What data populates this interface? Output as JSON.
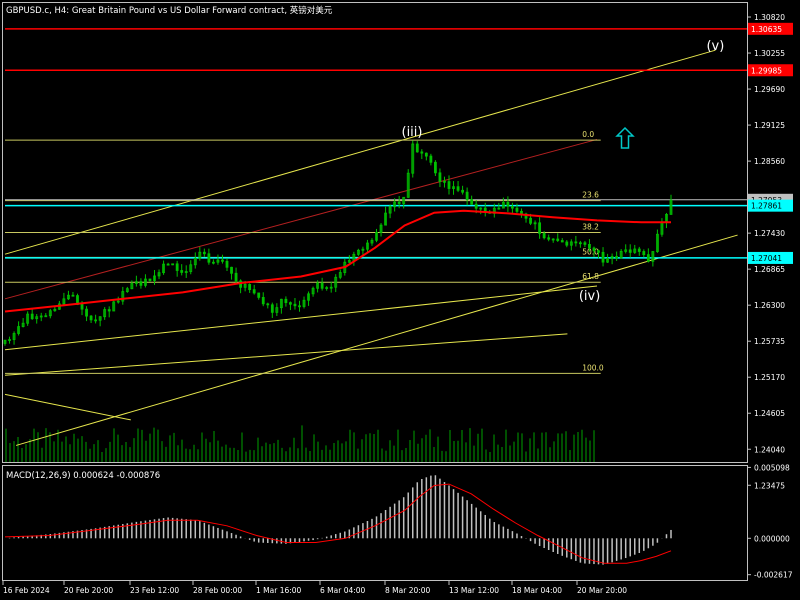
{
  "header": {
    "title": "GBPUSD.c, H4:  Great Britain Pound vs US Dollar Forward contract, 英镑对美元"
  },
  "colors": {
    "background": "#000000",
    "candle": "#00c000",
    "frame": "#c0c0c0",
    "ma": "#ff0000",
    "channel_yellow": "#e6e64d",
    "channel_red": "#b42020",
    "fib": "#c8c860",
    "level_red": "#ff0000",
    "level_cyan": "#00ffff",
    "volume": "#00a000",
    "macd_hist": "#c0c0c0",
    "macd_signal": "#ff0000",
    "arrow": "#00c8c8"
  },
  "chart_data": [
    {
      "type": "candlestick",
      "title": "GBPUSD.c, H4:  Great Britain Pound vs US Dollar Forward contract, 英镑对美元",
      "ylim": [
        1.2384,
        1.3104
      ],
      "y_ticks": [
        "1.30820",
        "1.30255",
        "1.29690",
        "1.29125",
        "1.28560",
        "1.27995",
        "1.27430",
        "1.26865",
        "1.26300",
        "1.25735",
        "1.25170",
        "1.24605",
        "1.24040",
        "1.23475"
      ],
      "x_ticks": [
        "16 Feb 2024",
        "20 Feb 20:00",
        "23 Feb 12:00",
        "28 Feb 00:00",
        "1 Mar 16:00",
        "6 Mar 04:00",
        "8 Mar 20:00",
        "13 Mar 12:00",
        "18 Mar 04:00",
        "20 Mar 20:00"
      ],
      "price_path": [
        [
          0,
          1.257
        ],
        [
          3,
          1.261
        ],
        [
          6,
          1.262
        ],
        [
          9,
          1.265
        ],
        [
          12,
          1.26
        ],
        [
          14,
          1.2625
        ],
        [
          17,
          1.266
        ],
        [
          20,
          1.267
        ],
        [
          22,
          1.27
        ],
        [
          24,
          1.268
        ],
        [
          26,
          1.271
        ],
        [
          28,
          1.27
        ],
        [
          30,
          1.269
        ],
        [
          32,
          1.266
        ],
        [
          34,
          1.265
        ],
        [
          36,
          1.262
        ],
        [
          38,
          1.264
        ],
        [
          40,
          1.263
        ],
        [
          42,
          1.266
        ],
        [
          44,
          1.266
        ],
        [
          46,
          1.27
        ],
        [
          48,
          1.272
        ],
        [
          50,
          1.274
        ],
        [
          52,
          1.278
        ],
        [
          54,
          1.28
        ],
        [
          55,
          1.288
        ],
        [
          57,
          1.286
        ],
        [
          59,
          1.282
        ],
        [
          61,
          1.281
        ],
        [
          63,
          1.279
        ],
        [
          65,
          1.277
        ],
        [
          67,
          1.279
        ],
        [
          69,
          1.278
        ],
        [
          71,
          1.276
        ],
        [
          73,
          1.274
        ],
        [
          75,
          1.273
        ],
        [
          77,
          1.273
        ],
        [
          79,
          1.272
        ],
        [
          81,
          1.27
        ],
        [
          83,
          1.271
        ],
        [
          85,
          1.272
        ],
        [
          87,
          1.27
        ],
        [
          89,
          1.277
        ],
        [
          90,
          1.279
        ]
      ],
      "moving_average": [
        [
          0,
          1.262
        ],
        [
          8,
          1.263
        ],
        [
          16,
          1.264
        ],
        [
          24,
          1.265
        ],
        [
          32,
          1.2665
        ],
        [
          40,
          1.2675
        ],
        [
          46,
          1.269
        ],
        [
          50,
          1.272
        ],
        [
          54,
          1.2755
        ],
        [
          58,
          1.2775
        ],
        [
          62,
          1.2778
        ],
        [
          68,
          1.2774
        ],
        [
          74,
          1.2768
        ],
        [
          80,
          1.2763
        ],
        [
          86,
          1.276
        ],
        [
          90,
          1.276
        ]
      ],
      "price_levels": [
        {
          "label": "1.30635",
          "value": 1.30635,
          "color": "#ff0000"
        },
        {
          "label": "1.29985",
          "value": 1.29985,
          "color": "#ff0000"
        },
        {
          "label": "1.27953",
          "value": 1.27953,
          "color": "#c0c0c0"
        },
        {
          "label": "1.27861",
          "value": 1.27861,
          "color": "#00ffff"
        },
        {
          "label": "1.27041",
          "value": 1.27041,
          "color": "#00ffff"
        }
      ],
      "fibonacci": [
        {
          "label": "0.0",
          "value": 1.2889
        },
        {
          "label": "23.6",
          "value": 1.2794
        },
        {
          "label": "38.2",
          "value": 1.2744
        },
        {
          "label": "50.0",
          "value": 1.2705
        },
        {
          "label": "61.8",
          "value": 1.2666
        },
        {
          "label": "100.0",
          "value": 1.2523
        }
      ],
      "waves": [
        {
          "label": "(iii)",
          "x": 55,
          "value": 1.2895
        },
        {
          "label": "(iv)",
          "x": 79,
          "value": 1.2638
        },
        {
          "label": "(v)",
          "x": 96,
          "value": 1.303
        }
      ]
    },
    {
      "type": "bar",
      "title": "MACD(12,26,9) 0.000624 -0.000876",
      "ylim": [
        -0.003,
        0.0052
      ],
      "y_ticks": [
        "0.005098",
        "0.000000",
        "-0.002617"
      ],
      "histogram": [
        [
          0,
          0.0
        ],
        [
          6,
          0.0003
        ],
        [
          12,
          0.0007
        ],
        [
          18,
          0.0012
        ],
        [
          22,
          0.0015
        ],
        [
          26,
          0.0013
        ],
        [
          30,
          0.0005
        ],
        [
          34,
          -0.0003
        ],
        [
          38,
          -0.0004
        ],
        [
          42,
          -0.0001
        ],
        [
          46,
          0.0005
        ],
        [
          50,
          0.0015
        ],
        [
          54,
          0.003
        ],
        [
          56,
          0.0042
        ],
        [
          58,
          0.0046
        ],
        [
          60,
          0.0038
        ],
        [
          63,
          0.0025
        ],
        [
          66,
          0.0012
        ],
        [
          69,
          0.0004
        ],
        [
          72,
          -0.0005
        ],
        [
          75,
          -0.0012
        ],
        [
          78,
          -0.0018
        ],
        [
          81,
          -0.0019
        ],
        [
          84,
          -0.0014
        ],
        [
          86,
          -0.001
        ],
        [
          88,
          -0.0004
        ],
        [
          90,
          0.0006
        ]
      ],
      "signal": [
        [
          0,
          0.0001
        ],
        [
          6,
          0.0002
        ],
        [
          12,
          0.0006
        ],
        [
          18,
          0.001
        ],
        [
          22,
          0.0013
        ],
        [
          26,
          0.0013
        ],
        [
          30,
          0.0009
        ],
        [
          34,
          0.0002
        ],
        [
          38,
          -0.0003
        ],
        [
          42,
          -0.0003
        ],
        [
          46,
          0.0
        ],
        [
          50,
          0.0009
        ],
        [
          54,
          0.002
        ],
        [
          56,
          0.003
        ],
        [
          58,
          0.0038
        ],
        [
          60,
          0.0039
        ],
        [
          63,
          0.0032
        ],
        [
          66,
          0.0021
        ],
        [
          69,
          0.0011
        ],
        [
          72,
          0.0002
        ],
        [
          75,
          -0.0006
        ],
        [
          78,
          -0.0014
        ],
        [
          81,
          -0.0018
        ],
        [
          84,
          -0.0018
        ],
        [
          86,
          -0.0016
        ],
        [
          88,
          -0.0013
        ],
        [
          90,
          -0.0009
        ]
      ]
    }
  ]
}
